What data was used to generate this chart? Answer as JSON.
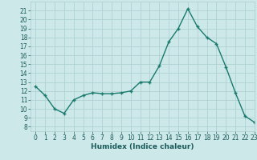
{
  "x": [
    0,
    1,
    2,
    3,
    4,
    5,
    6,
    7,
    8,
    9,
    10,
    11,
    12,
    13,
    14,
    15,
    16,
    17,
    18,
    19,
    20,
    21,
    22,
    23
  ],
  "y": [
    12.5,
    11.5,
    10.0,
    9.5,
    11.0,
    11.5,
    11.8,
    11.7,
    11.7,
    11.8,
    12.0,
    13.0,
    13.0,
    14.8,
    17.5,
    19.0,
    21.2,
    19.2,
    18.0,
    17.3,
    14.7,
    11.8,
    9.2,
    8.5
  ],
  "xlabel": "Humidex (Indice chaleur)",
  "xlim": [
    -0.5,
    23
  ],
  "ylim": [
    7.5,
    22
  ],
  "yticks": [
    8,
    9,
    10,
    11,
    12,
    13,
    14,
    15,
    16,
    17,
    18,
    19,
    20,
    21
  ],
  "xticks": [
    0,
    1,
    2,
    3,
    4,
    5,
    6,
    7,
    8,
    9,
    10,
    11,
    12,
    13,
    14,
    15,
    16,
    17,
    18,
    19,
    20,
    21,
    22,
    23
  ],
  "line_color": "#1a7a6e",
  "marker": "+",
  "bg_color": "#cce8e8",
  "grid_color": "#aacece",
  "font_color": "#1a5a5a",
  "tick_fontsize": 5.5,
  "xlabel_fontsize": 6.5,
  "linewidth": 1.0,
  "markersize": 3.5,
  "markeredgewidth": 1.0
}
